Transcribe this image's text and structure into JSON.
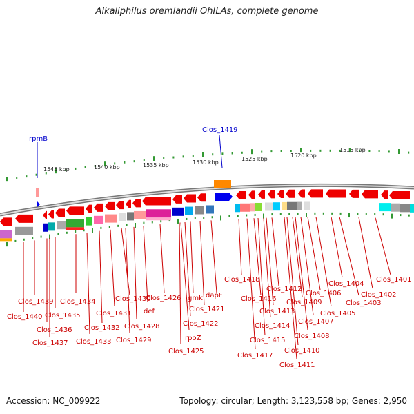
{
  "title": "Alkaliphilus oremlandii OhILAs, complete genome",
  "footer": {
    "accession": "Accession: NC_009922",
    "summary": "Topology: circular; Length: 3,123,558 bp; Genes: 2,950"
  },
  "scale_ticks": [
    "1545 kbp",
    "1540 kbp",
    "1535 kbp",
    "1530 kbp",
    "1525 kbp",
    "1520 kbp",
    "1515 kbp"
  ],
  "blue_labels": [
    "rpmB",
    "Clos_1419"
  ],
  "gene_labels": [
    "Clos_1439",
    "Clos_1440",
    "Clos_1436",
    "Clos_1437",
    "Clos_1435",
    "Clos_1434",
    "Clos_1433",
    "Clos_1432",
    "Clos_1431",
    "Clos_1430",
    "Clos_1429",
    "Clos_1428",
    "def",
    "Clos_1426",
    "rpoZ",
    "Clos_1425",
    "Clos_1422",
    "gmk",
    "Clos_1421",
    "dapF",
    "Clos_1418",
    "Clos_1417",
    "Clos_1416",
    "Clos_1415",
    "Clos_1414",
    "Clos_1413",
    "Clos_1412",
    "Clos_1411",
    "Clos_1410",
    "Clos_1409",
    "Clos_1408",
    "Clos_1407",
    "Clos_1406",
    "Clos_1405",
    "Clos_1404",
    "Clos_1403",
    "Clos_1402",
    "Clos_1401"
  ],
  "colors": {
    "gene_red": "#ee0000",
    "label_red": "#cc0000",
    "label_blue": "#0000cc",
    "tick_green": "#339933",
    "backbone": "#888888"
  }
}
